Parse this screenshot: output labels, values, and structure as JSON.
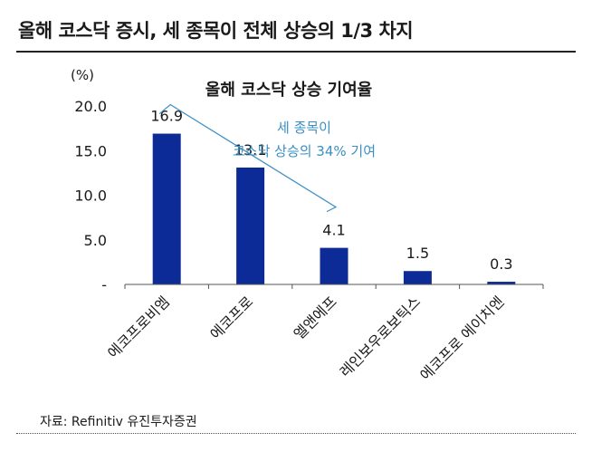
{
  "headline": "올해 코스닥 증시, 세 종목이 전체 상승의 1/3 차지",
  "source": "자료: Refinitiv 유진투자증권",
  "colors": {
    "bar": "#0d2b96",
    "annotation": "#3a8fc4",
    "axis": "#555555",
    "text": "#1a1a1a"
  },
  "chart_data": {
    "type": "bar",
    "title": "올해 코스닥 상승 기여율",
    "ylabel": "(%)",
    "ylim": [
      0,
      20
    ],
    "yticks": [
      {
        "value": 0,
        "label": "-"
      },
      {
        "value": 5,
        "label": "5.0"
      },
      {
        "value": 10,
        "label": "10.0"
      },
      {
        "value": 15,
        "label": "15.0"
      },
      {
        "value": 20,
        "label": "20.0"
      }
    ],
    "categories": [
      "에코프로비엠",
      "에코프로",
      "엘앤에프",
      "레인보우로보틱스",
      "에코프로 에이치엔"
    ],
    "values": [
      16.9,
      13.1,
      4.1,
      1.5,
      0.3
    ],
    "data_labels": [
      "16.9",
      "13.1",
      "4.1",
      "1.5",
      "0.3"
    ],
    "grid": false,
    "legend": "none",
    "annotation": {
      "lines": [
        "세 종목이",
        "코스닥 상승의 34% 기여"
      ]
    }
  }
}
